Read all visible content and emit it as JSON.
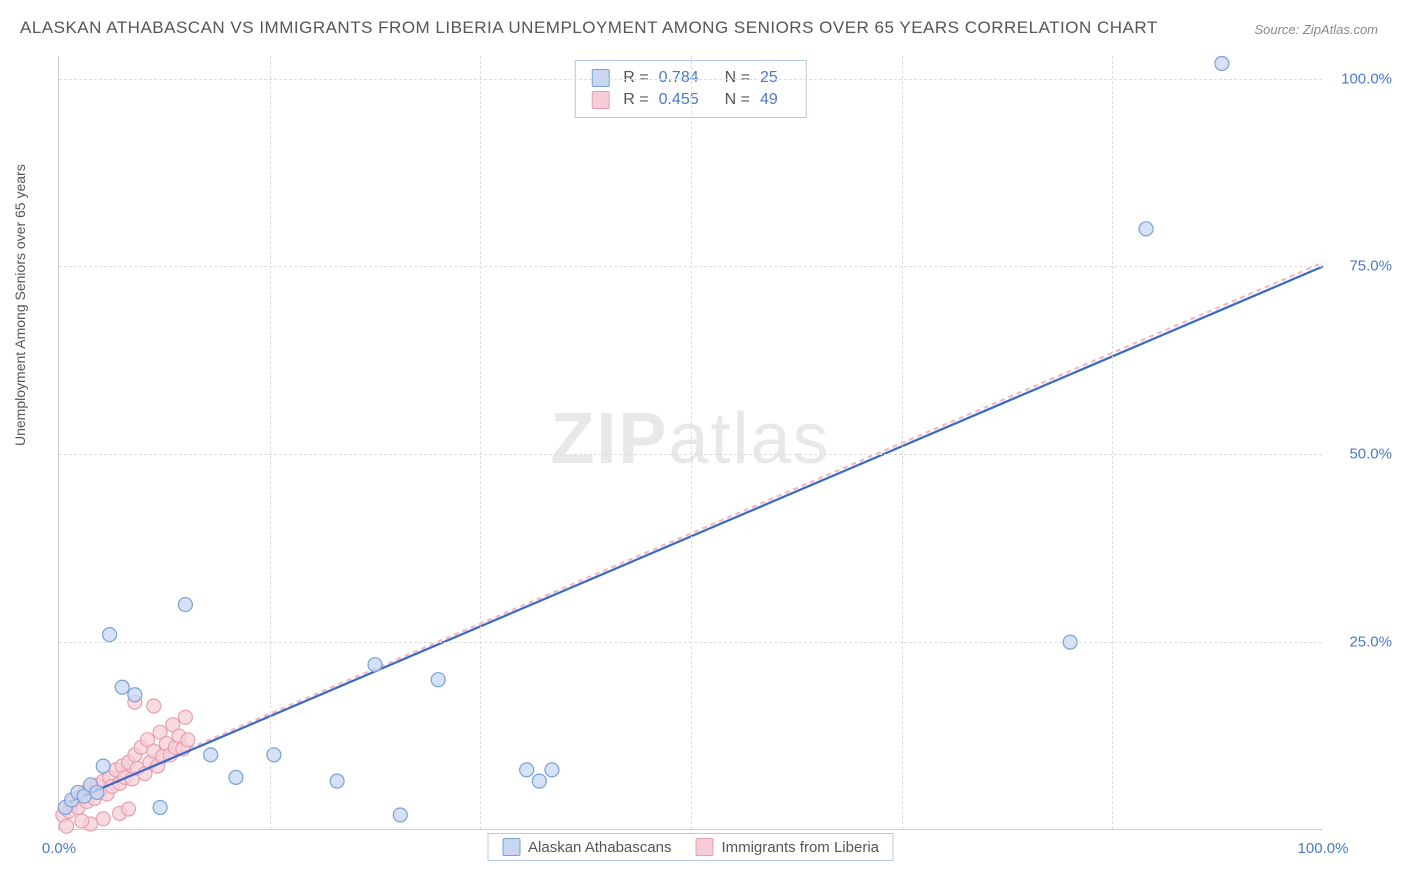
{
  "title": "ALASKAN ATHABASCAN VS IMMIGRANTS FROM LIBERIA UNEMPLOYMENT AMONG SENIORS OVER 65 YEARS CORRELATION CHART",
  "source": "Source: ZipAtlas.com",
  "watermark_a": "ZIP",
  "watermark_b": "atlas",
  "y_axis_label": "Unemployment Among Seniors over 65 years",
  "chart": {
    "type": "scatter",
    "x_min": 0,
    "x_max": 100,
    "y_min": 0,
    "y_max": 103,
    "y_ticks": [
      25,
      50,
      75,
      100
    ],
    "y_tick_labels": [
      "25.0%",
      "50.0%",
      "75.0%",
      "100.0%"
    ],
    "x_ticks": [
      0,
      100
    ],
    "x_tick_labels": [
      "0.0%",
      "100.0%"
    ],
    "v_grid": [
      16.67,
      33.33,
      50,
      66.67,
      83.33
    ],
    "background_color": "#ffffff",
    "grid_color": "#dddddd",
    "marker_radius": 7,
    "marker_stroke_width": 1.2,
    "line_width": 2.2
  },
  "series": [
    {
      "id": "a",
      "name": "Alaskan Athabascans",
      "fill": "#c7d7f0",
      "stroke": "#7aa1d8",
      "line_color": "#3968c8",
      "r_label": "R =",
      "r_value": "0.784",
      "n_label": "N =",
      "n_value": "25",
      "trend": {
        "x1": 0.5,
        "y1": 3.5,
        "x2": 100,
        "y2": 75
      },
      "points": [
        [
          0.5,
          3
        ],
        [
          1,
          4
        ],
        [
          1.5,
          5
        ],
        [
          2,
          4.5
        ],
        [
          2.5,
          6
        ],
        [
          3,
          5
        ],
        [
          3.5,
          8.5
        ],
        [
          4,
          26
        ],
        [
          5,
          19
        ],
        [
          6,
          18
        ],
        [
          8,
          3
        ],
        [
          10,
          30
        ],
        [
          12,
          10
        ],
        [
          14,
          7
        ],
        [
          17,
          10
        ],
        [
          22,
          6.5
        ],
        [
          25,
          22
        ],
        [
          27,
          2
        ],
        [
          30,
          20
        ],
        [
          37,
          8
        ],
        [
          38,
          6.5
        ],
        [
          39,
          8
        ],
        [
          80,
          25
        ],
        [
          86,
          80
        ],
        [
          92,
          102
        ]
      ]
    },
    {
      "id": "b",
      "name": "Immigrants from Liberia",
      "fill": "#f6cdd7",
      "stroke": "#e99fb0",
      "line_color": "#f4b7c3",
      "r_label": "R =",
      "r_value": "0.455",
      "n_label": "N =",
      "n_value": "49",
      "trend": {
        "x1": 0.5,
        "y1": 3.8,
        "x2": 100,
        "y2": 75.5
      },
      "points": [
        [
          0.3,
          2
        ],
        [
          0.5,
          3
        ],
        [
          0.8,
          2.5
        ],
        [
          1,
          3.5
        ],
        [
          1.2,
          4
        ],
        [
          1.5,
          3
        ],
        [
          1.7,
          4.5
        ],
        [
          2,
          5
        ],
        [
          2.2,
          3.8
        ],
        [
          2.5,
          5.5
        ],
        [
          2.8,
          4.2
        ],
        [
          3,
          6
        ],
        [
          3.2,
          5
        ],
        [
          3.5,
          6.5
        ],
        [
          3.8,
          4.8
        ],
        [
          4,
          7
        ],
        [
          4.2,
          5.8
        ],
        [
          4.5,
          8
        ],
        [
          4.8,
          6.2
        ],
        [
          5,
          8.5
        ],
        [
          5.2,
          7
        ],
        [
          5.5,
          9
        ],
        [
          5.8,
          6.8
        ],
        [
          6,
          10
        ],
        [
          6.2,
          8.2
        ],
        [
          6.5,
          11
        ],
        [
          6.8,
          7.5
        ],
        [
          7,
          12
        ],
        [
          7.2,
          9
        ],
        [
          7.5,
          10.5
        ],
        [
          7.8,
          8.5
        ],
        [
          8,
          13
        ],
        [
          8.2,
          9.8
        ],
        [
          8.5,
          11.5
        ],
        [
          8.8,
          10
        ],
        [
          9,
          14
        ],
        [
          9.2,
          11
        ],
        [
          9.5,
          12.5
        ],
        [
          9.8,
          10.8
        ],
        [
          10,
          15
        ],
        [
          10.2,
          12
        ],
        [
          6,
          17
        ],
        [
          7.5,
          16.5
        ],
        [
          3.5,
          1.5
        ],
        [
          4.8,
          2.2
        ],
        [
          2.5,
          0.8
        ],
        [
          1.8,
          1.2
        ],
        [
          0.6,
          0.5
        ],
        [
          5.5,
          2.8
        ]
      ]
    }
  ]
}
